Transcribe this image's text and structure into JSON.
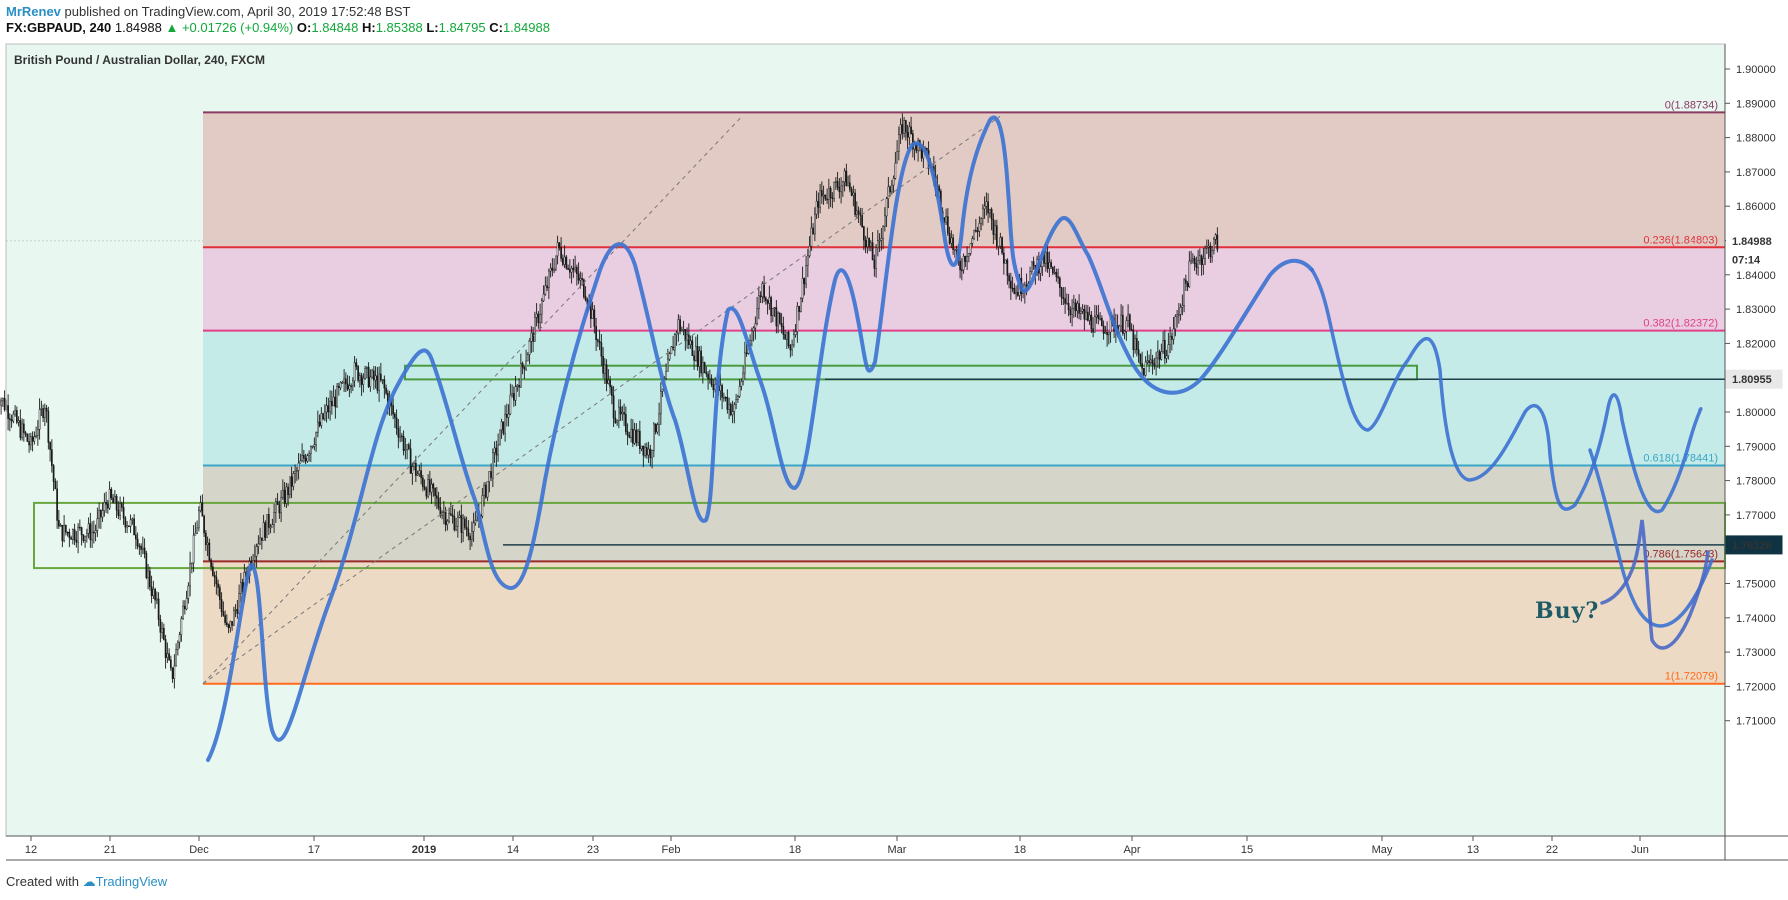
{
  "header": {
    "author": "MrRenev",
    "published": " published on TradingView.com, April 30, 2019 17:52:48 BST",
    "symbol": "FX:GBPAUD, 240",
    "last": "1.84988",
    "change": "▲ +0.01726 (+0.94%)",
    "o_label": "O:",
    "o_value": "1.84848",
    "h_label": "H:",
    "h_value": "1.85388",
    "l_label": "L:",
    "l_value": "1.84795",
    "c_label": "C:",
    "c_value": "1.84988"
  },
  "footer": {
    "created_with": "Created with",
    "brand": "TradingView"
  },
  "chart_data": {
    "type": "candlestick",
    "title": "British Pound / Australian Dollar, 240, FXCM",
    "x_ticks": [
      "12",
      "21",
      "Dec",
      "17",
      "2019",
      "14",
      "23",
      "Feb",
      "18",
      "Mar",
      "18",
      "Apr",
      "15",
      "May",
      "13",
      "22",
      "Jun"
    ],
    "y_ticks": [
      "1.90000",
      "1.89000",
      "1.88000",
      "1.87000",
      "1.86000",
      "1.85000",
      "1.84000",
      "1.83000",
      "1.82000",
      "1.81000",
      "1.80000",
      "1.79000",
      "1.78000",
      "1.77000",
      "1.76000",
      "1.75000",
      "1.74000",
      "1.73000",
      "1.72000",
      "1.71000"
    ],
    "ylim": [
      1.705,
      1.9
    ],
    "fib_levels": [
      {
        "label": "0(1.88734)",
        "value": 1.88734,
        "color": "#8b3a62"
      },
      {
        "label": "0.236(1.84803)",
        "value": 1.84803,
        "color": "#e0303a"
      },
      {
        "label": "0.382(1.82372)",
        "value": 1.82372,
        "color": "#e0408a"
      },
      {
        "label": "0.618(1.78441)",
        "value": 1.78441,
        "color": "#3aa6c8"
      },
      {
        "label": "0.786(1.75643)",
        "value": 1.75643,
        "color": "#9a2a2a"
      },
      {
        "label": "1(1.72079)",
        "value": 1.72079,
        "color": "#ff6a1a"
      }
    ],
    "price_markers": [
      {
        "label": "1.84988",
        "value": 1.84988,
        "color": "#ffffff",
        "text_color": "#111111"
      },
      {
        "label": "07:14",
        "value": 1.8445,
        "color": "#ffffff",
        "text_color": "#111111"
      },
      {
        "label": "1.80955",
        "value": 1.80955,
        "color": "#e8e8e8",
        "text_color": "#111111"
      },
      {
        "label": "1.76126",
        "value": 1.76126,
        "color": "#0f3342",
        "text_color": "#ffffff"
      }
    ],
    "annotation": "Buy?",
    "price_path_points": [
      [
        "Nov 7",
        1.806
      ],
      [
        "Nov 9",
        1.8
      ],
      [
        "Nov 12",
        1.79
      ],
      [
        "Nov 14",
        1.803
      ],
      [
        "Nov 16",
        1.765
      ],
      [
        "Nov 19",
        1.765
      ],
      [
        "Nov 21",
        1.765
      ],
      [
        "Nov 23",
        1.775
      ],
      [
        "Nov 27",
        1.765
      ],
      [
        "Nov 30",
        1.742
      ],
      [
        "Dec 2",
        1.722
      ],
      [
        "Dec 6",
        1.772
      ],
      [
        "Dec 10",
        1.735
      ],
      [
        "Dec 14",
        1.762
      ],
      [
        "Dec 18",
        1.775
      ],
      [
        "Dec 24",
        1.8
      ],
      [
        "Dec 28",
        1.812
      ],
      [
        "Jan 1",
        1.808
      ],
      [
        "Jan 5",
        1.785
      ],
      [
        "Jan 10",
        1.77
      ],
      [
        "Jan 14",
        1.765
      ],
      [
        "Jan 18",
        1.795
      ],
      [
        "Jan 22",
        1.82
      ],
      [
        "Jan 26",
        1.848
      ],
      [
        "Jan 30",
        1.835
      ],
      [
        "Feb 3",
        1.8
      ],
      [
        "Feb 8",
        1.788
      ],
      [
        "Feb 12",
        1.826
      ],
      [
        "Feb 16",
        1.812
      ],
      [
        "Feb 20",
        1.8
      ],
      [
        "Feb 24",
        1.837
      ],
      [
        "Feb 28",
        1.818
      ],
      [
        "Mar 4",
        1.862
      ],
      [
        "Mar 8",
        1.868
      ],
      [
        "Mar 12",
        1.843
      ],
      [
        "Mar 16",
        1.884
      ],
      [
        "Mar 20",
        1.872
      ],
      [
        "Mar 24",
        1.842
      ],
      [
        "Mar 28",
        1.86
      ],
      [
        "Apr 1",
        1.835
      ],
      [
        "Apr 5",
        1.845
      ],
      [
        "Apr 9",
        1.83
      ],
      [
        "Apr 13",
        1.825
      ],
      [
        "Apr 17",
        1.826
      ],
      [
        "Apr 19",
        1.812
      ],
      [
        "Apr 23",
        1.82
      ],
      [
        "Apr 26",
        1.843
      ],
      [
        "Apr 30",
        1.85
      ]
    ]
  }
}
